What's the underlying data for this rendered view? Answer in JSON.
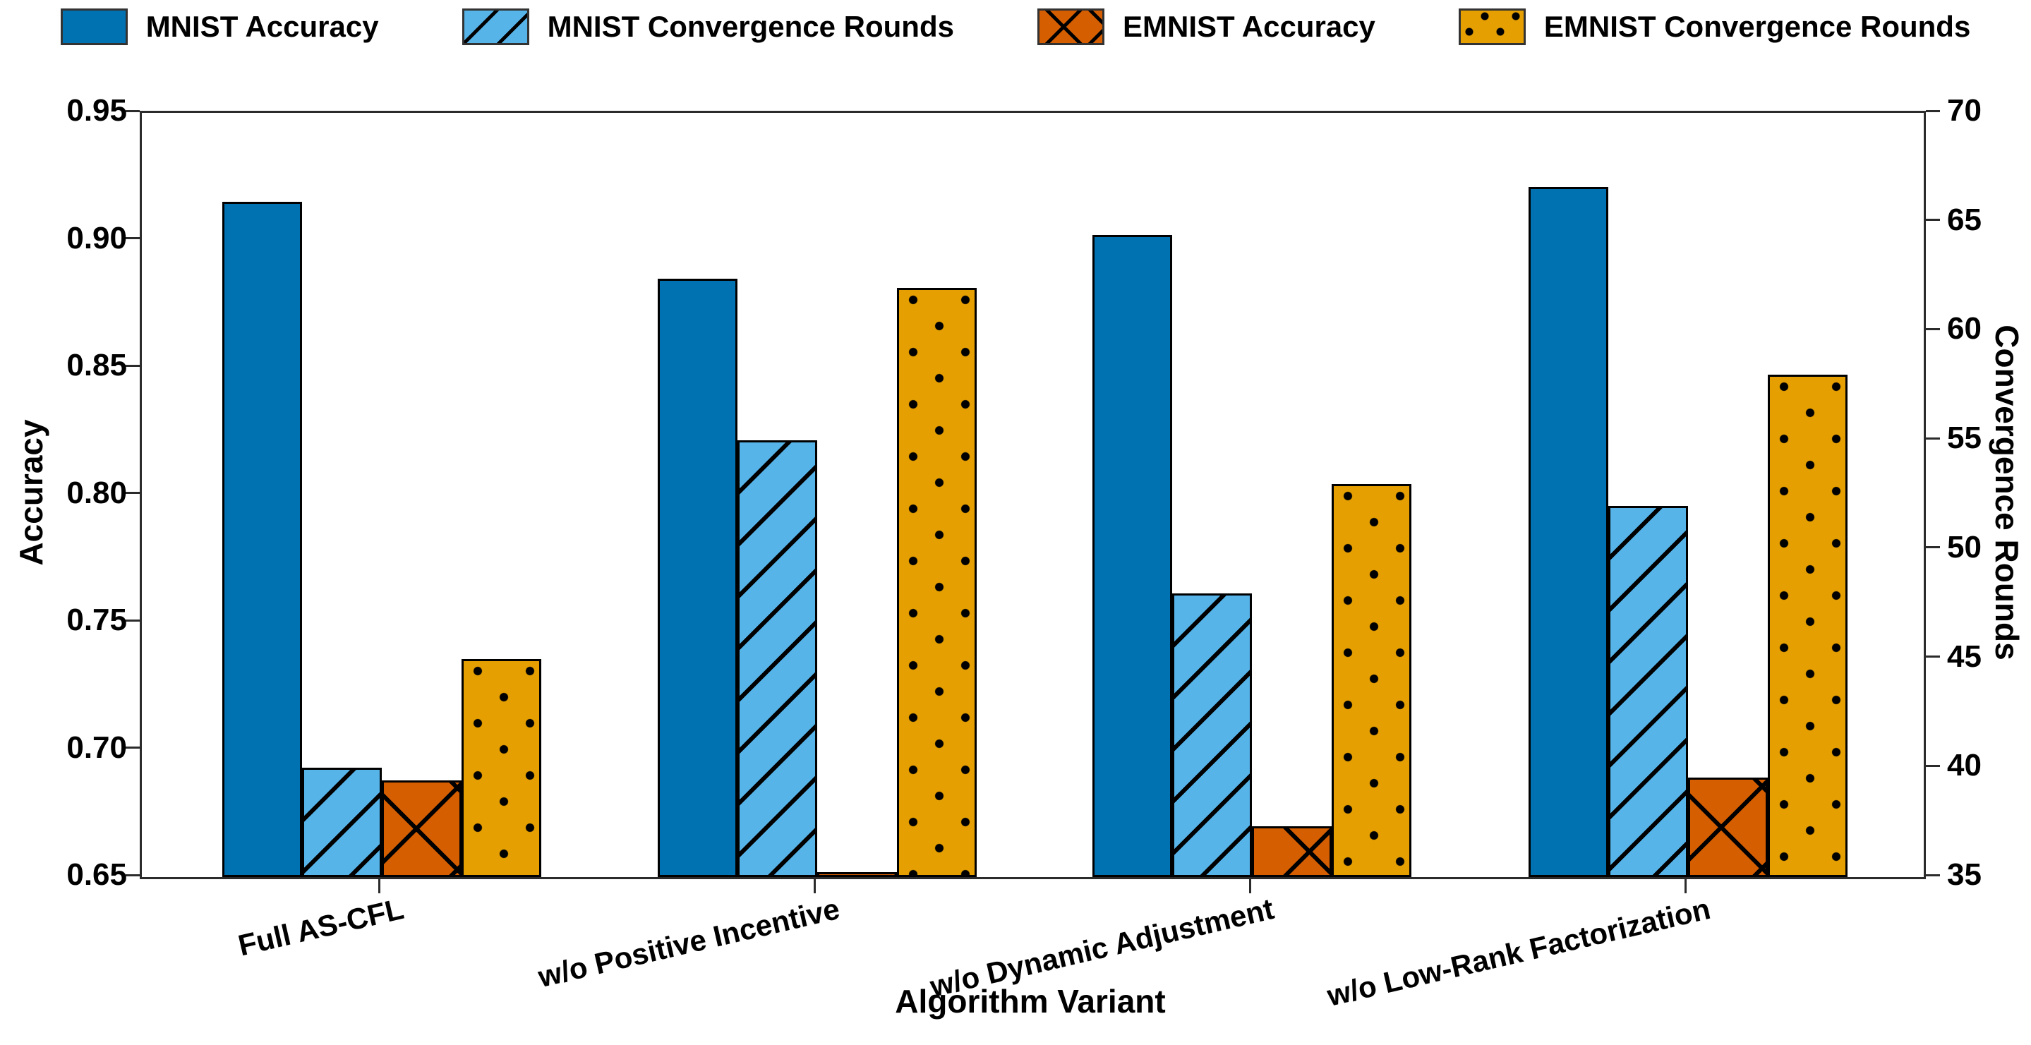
{
  "legend": {
    "items": [
      {
        "label": "MNIST Accuracy",
        "series_key": "mnist_accuracy",
        "swatch": "solid"
      },
      {
        "label": "MNIST Convergence Rounds",
        "series_key": "mnist_convergence_rounds",
        "swatch": "diagonal"
      },
      {
        "label": "EMNIST Accuracy",
        "series_key": "emnist_accuracy",
        "swatch": "cross"
      },
      {
        "label": "EMNIST Convergence Rounds",
        "series_key": "emnist_convergence_rounds",
        "swatch": "dots"
      }
    ]
  },
  "axes": {
    "left": {
      "title": "Accuracy",
      "tick_labels": [
        "0.65",
        "0.70",
        "0.75",
        "0.80",
        "0.85",
        "0.90",
        "0.95"
      ]
    },
    "right": {
      "title": "Convergence Rounds",
      "tick_labels": [
        "35",
        "40",
        "45",
        "50",
        "55",
        "60",
        "65",
        "70"
      ]
    },
    "x": {
      "title": "Algorithm Variant"
    }
  },
  "chart_data": {
    "type": "bar",
    "categories": [
      "Full AS-CFL",
      "w/o Positive Incentive",
      "w/o Dynamic Adjustment",
      "w/o Low-Rank Factorization"
    ],
    "series": [
      {
        "name": "MNIST Accuracy",
        "axis": "left",
        "values": [
          0.915,
          0.885,
          0.902,
          0.921
        ],
        "color": "#0072B2",
        "hatch": "none"
      },
      {
        "name": "MNIST Convergence Rounds",
        "axis": "right",
        "values": [
          40,
          55,
          48,
          52
        ],
        "color": "#56B4E9",
        "hatch": "diagonal"
      },
      {
        "name": "EMNIST Accuracy",
        "axis": "left",
        "values": [
          0.688,
          0.652,
          0.67,
          0.689
        ],
        "color": "#D55E00",
        "hatch": "cross"
      },
      {
        "name": "EMNIST Convergence Rounds",
        "axis": "right",
        "values": [
          45,
          62,
          53,
          58
        ],
        "color": "#E69F00",
        "hatch": "dots"
      }
    ],
    "left_axis": {
      "label": "Accuracy",
      "range": [
        0.65,
        0.95
      ],
      "tick_step": 0.05
    },
    "right_axis": {
      "label": "Convergence Rounds",
      "range": [
        35,
        70
      ],
      "tick_step": 5
    },
    "xlabel": "Algorithm Variant",
    "title": "",
    "grid": false,
    "legend_position": "top-center",
    "bar_edge_color": "#000000"
  }
}
